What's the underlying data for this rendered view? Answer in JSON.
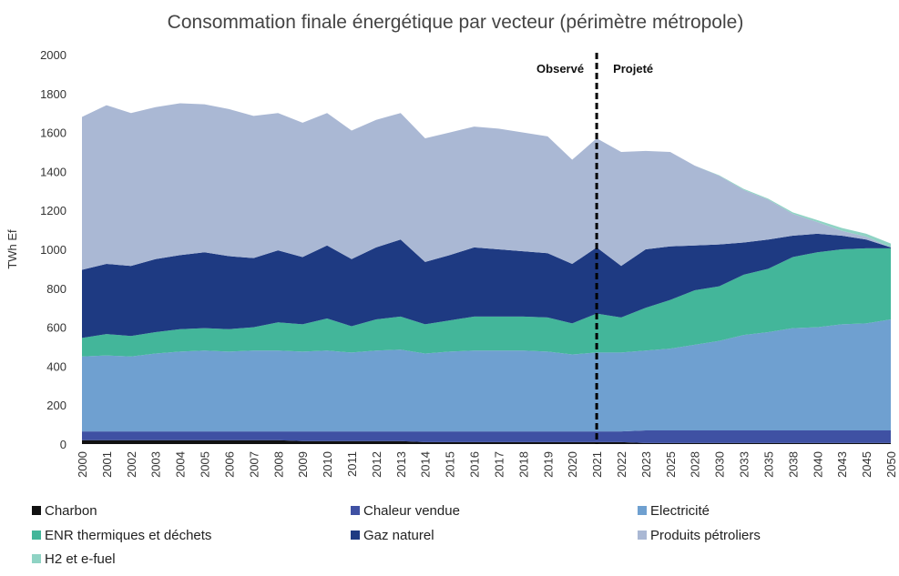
{
  "chart_data": {
    "type": "stacked_area",
    "title": "Consommation finale énergétique par vecteur (périmètre métropole)",
    "y_label": "TWh Ef",
    "categories": [
      "2000",
      "2001",
      "2002",
      "2003",
      "2004",
      "2005",
      "2006",
      "2007",
      "2008",
      "2009",
      "2010",
      "2011",
      "2012",
      "2013",
      "2014",
      "2015",
      "2016",
      "2017",
      "2018",
      "2019",
      "2020",
      "2021",
      "2022",
      "2023",
      "2025",
      "2028",
      "2030",
      "2033",
      "2035",
      "2038",
      "2040",
      "2043",
      "2045",
      "2050"
    ],
    "series": [
      {
        "name": "Charbon",
        "color": "#111111",
        "values": [
          20,
          20,
          20,
          20,
          20,
          20,
          20,
          20,
          20,
          15,
          15,
          15,
          15,
          15,
          10,
          10,
          10,
          10,
          10,
          10,
          10,
          10,
          10,
          5,
          5,
          5,
          5,
          5,
          5,
          5,
          5,
          5,
          5,
          5
        ]
      },
      {
        "name": "Chaleur vendue",
        "color": "#3f51a3",
        "values": [
          45,
          45,
          45,
          45,
          45,
          45,
          45,
          45,
          45,
          50,
          50,
          50,
          50,
          50,
          55,
          55,
          55,
          55,
          55,
          55,
          55,
          55,
          55,
          65,
          65,
          65,
          65,
          65,
          65,
          65,
          65,
          65,
          65,
          65
        ]
      },
      {
        "name": "Electricité",
        "color": "#6fa0d0",
        "values": [
          385,
          390,
          385,
          400,
          410,
          415,
          410,
          415,
          415,
          410,
          415,
          405,
          415,
          420,
          400,
          410,
          415,
          415,
          415,
          410,
          395,
          405,
          405,
          410,
          420,
          440,
          460,
          490,
          505,
          525,
          530,
          545,
          550,
          570
        ]
      },
      {
        "name": "ENR thermiques et déchets",
        "color": "#43b69a",
        "values": [
          95,
          110,
          105,
          110,
          115,
          115,
          115,
          120,
          145,
          140,
          165,
          135,
          160,
          170,
          150,
          160,
          175,
          175,
          175,
          175,
          160,
          200,
          180,
          220,
          250,
          280,
          280,
          310,
          325,
          365,
          385,
          385,
          385,
          365
        ]
      },
      {
        "name": "Gaz naturel",
        "color": "#1e3a82",
        "values": [
          350,
          360,
          360,
          375,
          380,
          390,
          375,
          355,
          370,
          345,
          375,
          345,
          370,
          395,
          320,
          335,
          355,
          345,
          335,
          330,
          305,
          340,
          265,
          300,
          275,
          230,
          215,
          165,
          150,
          110,
          95,
          70,
          45,
          5
        ]
      },
      {
        "name": "Produits pétroliers",
        "color": "#aab8d4",
        "values": [
          785,
          815,
          785,
          780,
          780,
          760,
          755,
          730,
          705,
          690,
          680,
          660,
          655,
          650,
          635,
          630,
          620,
          620,
          610,
          600,
          535,
          560,
          585,
          505,
          485,
          410,
          353,
          270,
          205,
          112,
          60,
          25,
          15,
          0
        ]
      },
      {
        "name": "H2 et e-fuel",
        "color": "#8fd3c4",
        "values": [
          0,
          0,
          0,
          0,
          0,
          0,
          0,
          0,
          0,
          0,
          0,
          0,
          0,
          0,
          0,
          0,
          0,
          0,
          0,
          0,
          0,
          0,
          0,
          0,
          0,
          0,
          2,
          5,
          5,
          8,
          10,
          15,
          15,
          20
        ]
      }
    ],
    "ylim": [
      0,
      2000
    ],
    "yticks": [
      0,
      200,
      400,
      600,
      800,
      1000,
      1200,
      1400,
      1600,
      1800,
      2000
    ],
    "divider": "2021",
    "left_annotation": "Observé",
    "right_annotation": "Projeté"
  }
}
